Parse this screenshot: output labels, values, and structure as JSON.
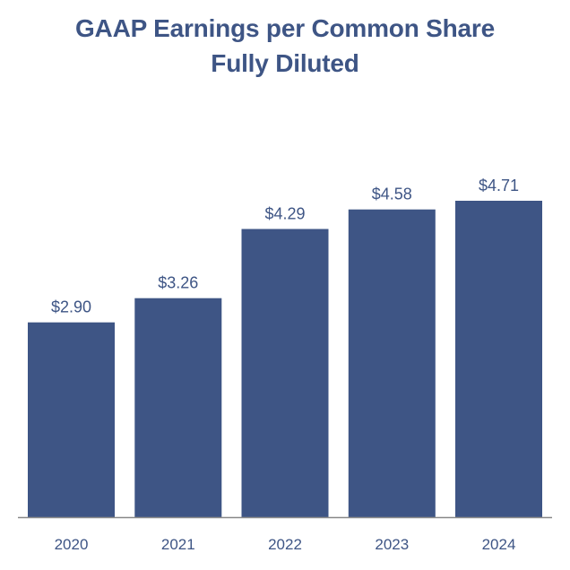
{
  "chart_data": {
    "type": "bar",
    "title": [
      "GAAP Earnings per Common Share",
      "Fully Diluted"
    ],
    "categories": [
      "2020",
      "2021",
      "2022",
      "2023",
      "2024"
    ],
    "values": [
      2.9,
      3.26,
      4.29,
      4.58,
      4.71
    ],
    "data_labels": [
      "$2.90",
      "$3.26",
      "$4.29",
      "$4.58",
      "$4.71"
    ],
    "xlabel": "",
    "ylabel": "",
    "ylim": [
      0,
      4.71
    ],
    "grid": false,
    "legend": "none",
    "colors": {
      "bar": "#3e5585",
      "title": "#3e5585",
      "label": "#3e5585",
      "axis": "#888888"
    }
  }
}
